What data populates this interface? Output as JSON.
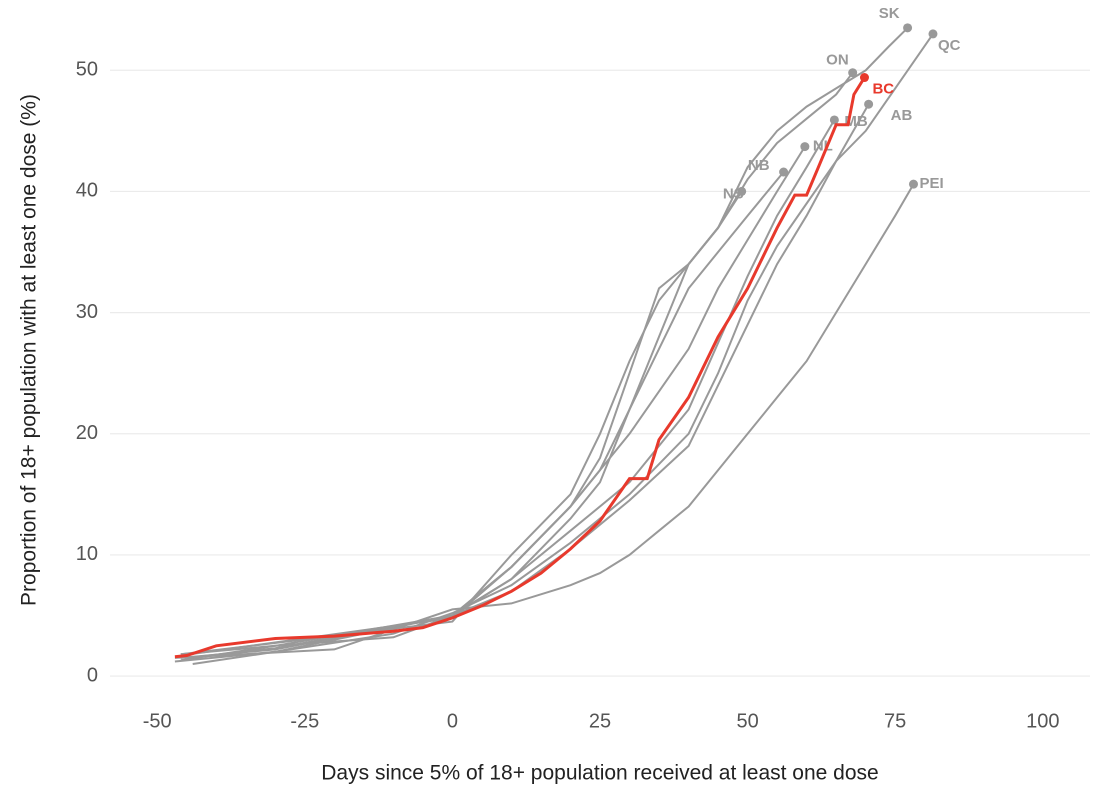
{
  "chart_data": {
    "type": "line",
    "xlabel": "Days since 5% of 18+ population received at least one dose",
    "ylabel": "Proportion of 18+ population with at least one dose (%)",
    "xlim": [
      -58,
      108
    ],
    "xticks": [
      -50,
      -25,
      0,
      25,
      50,
      75,
      100
    ],
    "ylim": [
      -2.8,
      55.8
    ],
    "yticks": [
      0,
      10,
      20,
      30,
      40,
      50
    ],
    "grid": true,
    "series": [
      {
        "name": "SK",
        "color": "#999999",
        "x": [
          -46,
          -30,
          -10,
          0,
          10,
          20,
          25,
          30,
          35,
          40,
          45,
          50,
          55,
          60,
          65,
          70,
          74,
          77.1
        ],
        "values": [
          1.3,
          2.5,
          3.2,
          5,
          8,
          13,
          16,
          22,
          28,
          34,
          37,
          42,
          45,
          47,
          48.5,
          50,
          52,
          53.5
        ]
      },
      {
        "name": "QC",
        "color": "#999999",
        "x": [
          -47,
          -30,
          -10,
          0,
          10,
          20,
          30,
          40,
          45,
          50,
          55,
          60,
          65,
          70,
          75,
          81.4
        ],
        "values": [
          1.2,
          2,
          3.5,
          5.2,
          7.5,
          11,
          15,
          20,
          25,
          31,
          35.5,
          39,
          42.5,
          45,
          48.5,
          53
        ]
      },
      {
        "name": "ON",
        "color": "#999999",
        "x": [
          -46,
          -30,
          0,
          10,
          20,
          25,
          30,
          35,
          40,
          45,
          50,
          55,
          60,
          65,
          67.8
        ],
        "values": [
          1.8,
          2.5,
          5,
          9,
          14,
          18,
          25,
          32,
          34,
          37,
          41,
          44,
          46,
          48,
          49.8
        ]
      },
      {
        "name": "AB",
        "color": "#999999",
        "x": [
          -46,
          -30,
          0,
          10,
          20,
          30,
          40,
          50,
          55,
          60,
          65,
          70.5
        ],
        "values": [
          1.5,
          2.2,
          5,
          7,
          10.5,
          14.5,
          19,
          29,
          34,
          38,
          42.5,
          47.2
        ]
      },
      {
        "name": "MB",
        "color": "#999999",
        "x": [
          -44,
          -30,
          0,
          10,
          20,
          30,
          40,
          50,
          55,
          60,
          64.7
        ],
        "values": [
          1,
          2,
          5,
          8,
          12,
          16,
          22,
          33,
          38,
          42,
          45.9
        ]
      },
      {
        "name": "NL",
        "color": "#999999",
        "x": [
          -45,
          -30,
          0,
          10,
          20,
          30,
          40,
          45,
          50,
          55,
          59.7
        ],
        "values": [
          1.5,
          2.3,
          5,
          9,
          14,
          20,
          27,
          32,
          36,
          40,
          43.7
        ]
      },
      {
        "name": "NB",
        "color": "#999999",
        "x": [
          -46,
          0,
          10,
          20,
          25,
          30,
          35,
          40,
          45,
          50,
          56.1
        ],
        "values": [
          1.7,
          4.8,
          9,
          14,
          17,
          22,
          27,
          32,
          35,
          38,
          41.6
        ]
      },
      {
        "name": "NS",
        "color": "#999999",
        "x": [
          -46,
          0,
          10,
          20,
          25,
          30,
          35,
          40,
          45,
          49
        ],
        "values": [
          1.8,
          4.5,
          10,
          15,
          20,
          26,
          31,
          34,
          37,
          40
        ]
      },
      {
        "name": "PEI",
        "color": "#999999",
        "x": [
          -47,
          -20,
          0,
          10,
          20,
          25,
          30,
          35,
          40,
          45,
          50,
          55,
          60,
          65,
          70,
          75,
          78.1
        ],
        "values": [
          1.5,
          2.2,
          5.5,
          6,
          7.5,
          8.5,
          10,
          12,
          14,
          17,
          20,
          23,
          26,
          30,
          34,
          38,
          40.6
        ]
      },
      {
        "name": "BC",
        "color": "#e8392c",
        "x": [
          -47,
          -45,
          -40,
          -30,
          -20,
          -10,
          -5,
          0,
          5,
          10,
          15,
          20,
          25,
          30,
          33,
          35,
          40,
          45,
          50,
          52,
          55,
          58,
          60,
          62,
          65,
          67,
          68,
          69.8
        ],
        "values": [
          1.6,
          1.7,
          2.5,
          3.1,
          3.3,
          3.7,
          4.0,
          4.8,
          5.8,
          7.0,
          8.5,
          10.5,
          12.8,
          16.3,
          16.3,
          19.5,
          23,
          28,
          32,
          34,
          37,
          39.7,
          39.7,
          42,
          45.5,
          45.5,
          48,
          49.4
        ]
      }
    ]
  }
}
